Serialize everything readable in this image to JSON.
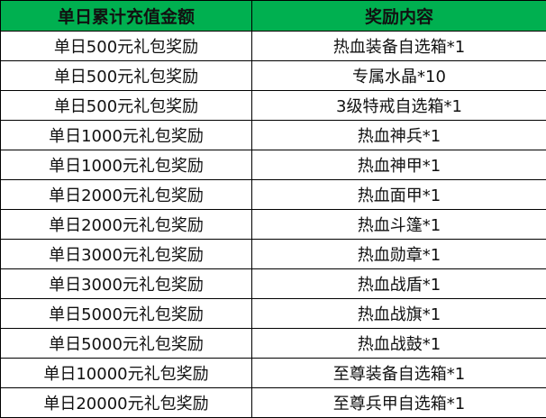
{
  "header": {
    "col1": "单日累计充值金额",
    "col2": "奖励内容",
    "background_color": "#00b050"
  },
  "rows": [
    [
      "单日500元礼包奖励",
      "热血装备自选箱*1"
    ],
    [
      "单日500元礼包奖励",
      "专属水晶*10"
    ],
    [
      "单日500元礼包奖励",
      "3级特戒自选箱*1"
    ],
    [
      "单日1000元礼包奖励",
      "热血神兵*1"
    ],
    [
      "单日1000元礼包奖励",
      "热血神甲*1"
    ],
    [
      "单日2000元礼包奖励",
      "热血面甲*1"
    ],
    [
      "单日2000元礼包奖励",
      "热血斗篷*1"
    ],
    [
      "单日3000元礼包奖励",
      "热血勋章*1"
    ],
    [
      "单日3000元礼包奖励",
      "热血战盾*1"
    ],
    [
      "单日5000元礼包奖励",
      "热血战旗*1"
    ],
    [
      "单日5000元礼包奖励",
      "热血战鼓*1"
    ],
    [
      "单日10000元礼包奖励",
      "至尊装备自选箱*1"
    ],
    [
      "单日20000元礼包奖励",
      "至尊兵甲自选箱*1"
    ]
  ]
}
